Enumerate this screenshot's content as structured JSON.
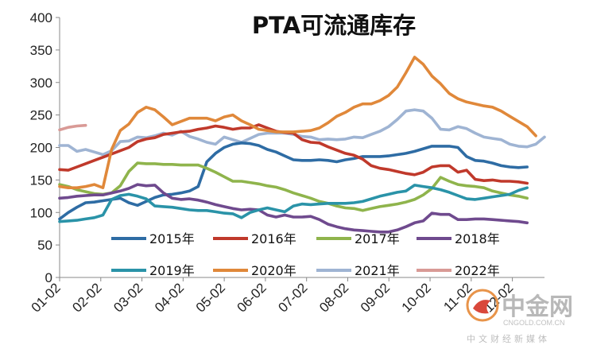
{
  "chart_data": {
    "type": "line",
    "title": "PTA可流通库存",
    "xlabel": "",
    "ylabel": "",
    "ylim": [
      0,
      400
    ],
    "yticks": [
      0,
      50,
      100,
      150,
      200,
      250,
      300,
      350,
      400
    ],
    "x_ticklabels": [
      "01-02",
      "02-02",
      "03-02",
      "04-02",
      "05-02",
      "06-02",
      "07-02",
      "08-02",
      "09-02",
      "10-02",
      "11-02",
      "12-02"
    ],
    "grid": false,
    "legend_position": "bottom",
    "series": [
      {
        "name": "2015年",
        "color": "#2e6ca4",
        "values": [
          90,
          100,
          108,
          115,
          116,
          118,
          120,
          122,
          115,
          111,
          117,
          123,
          127,
          128,
          130,
          133,
          140,
          178,
          191,
          200,
          205,
          207,
          206,
          203,
          197,
          193,
          187,
          181,
          180,
          180,
          181,
          180,
          178,
          181,
          183,
          186,
          186,
          186,
          187,
          189,
          191,
          194,
          198,
          202,
          202,
          202,
          200,
          186,
          180,
          179,
          176,
          172,
          170,
          169,
          170
        ]
      },
      {
        "name": "2016年",
        "color": "#c0392b",
        "values": [
          166,
          165,
          170,
          175,
          180,
          185,
          190,
          195,
          200,
          209,
          213,
          215,
          220,
          222,
          224,
          225,
          228,
          230,
          233,
          231,
          228,
          230,
          230,
          235,
          230,
          225,
          223,
          222,
          212,
          208,
          207,
          201,
          196,
          191,
          188,
          182,
          172,
          168,
          166,
          163,
          160,
          158,
          162,
          170,
          172,
          172,
          162,
          165,
          151,
          149,
          150,
          148,
          148,
          147,
          145
        ]
      },
      {
        "name": "2017年",
        "color": "#8fb44c",
        "values": [
          143,
          140,
          135,
          132,
          129,
          128,
          130,
          141,
          163,
          176,
          175,
          175,
          174,
          174,
          173,
          173,
          173,
          168,
          162,
          155,
          148,
          148,
          146,
          144,
          141,
          139,
          135,
          130,
          126,
          122,
          117,
          114,
          110,
          107,
          106,
          103,
          106,
          109,
          111,
          113,
          116,
          120,
          127,
          137,
          154,
          148,
          143,
          141,
          140,
          138,
          133,
          130,
          127,
          125,
          122
        ]
      },
      {
        "name": "2018年",
        "color": "#6f4a8e",
        "values": [
          122,
          123,
          125,
          126,
          127,
          127,
          130,
          133,
          137,
          143,
          141,
          142,
          130,
          122,
          120,
          121,
          119,
          116,
          112,
          109,
          106,
          104,
          105,
          104,
          96,
          93,
          96,
          93,
          93,
          94,
          89,
          82,
          78,
          75,
          73,
          72,
          71,
          70,
          70,
          73,
          78,
          84,
          87,
          99,
          97,
          97,
          89,
          89,
          90,
          90,
          89,
          88,
          87,
          86,
          84
        ]
      },
      {
        "name": "2019年",
        "color": "#2a93a8",
        "values": [
          86,
          87,
          88,
          90,
          92,
          96,
          120,
          126,
          128,
          125,
          121,
          110,
          109,
          108,
          106,
          104,
          103,
          103,
          101,
          99,
          98,
          92,
          100,
          104,
          107,
          104,
          101,
          110,
          113,
          112,
          113,
          114,
          114,
          114,
          115,
          117,
          121,
          125,
          128,
          131,
          133,
          142,
          140,
          138,
          135,
          131,
          126,
          121,
          120,
          122,
          124,
          126,
          128,
          134,
          138
        ]
      },
      {
        "name": "2020年",
        "color": "#e0883a",
        "values": [
          140,
          138,
          138,
          140,
          143,
          138,
          197,
          226,
          236,
          254,
          262,
          258,
          247,
          235,
          240,
          245,
          245,
          245,
          241,
          247,
          250,
          241,
          235,
          228,
          226,
          224,
          224,
          224,
          225,
          226,
          230,
          238,
          248,
          254,
          262,
          267,
          267,
          272,
          280,
          293,
          315,
          339,
          328,
          310,
          298,
          283,
          275,
          270,
          267,
          264,
          262,
          256,
          248,
          240,
          232,
          218
        ]
      },
      {
        "name": "2021年",
        "color": "#9fb4d3",
        "values": [
          203,
          203,
          194,
          197,
          193,
          189,
          195,
          209,
          210,
          216,
          215,
          218,
          222,
          219,
          225,
          217,
          213,
          208,
          205,
          216,
          212,
          208,
          214,
          220,
          222,
          222,
          222,
          220,
          217,
          216,
          212,
          213,
          212,
          213,
          216,
          215,
          220,
          225,
          232,
          243,
          256,
          258,
          256,
          245,
          228,
          227,
          232,
          229,
          222,
          216,
          214,
          212,
          205,
          202,
          201,
          205,
          216
        ]
      },
      {
        "name": "2022年",
        "color": "#d99a96",
        "values": [
          227,
          231,
          233,
          234
        ]
      }
    ]
  },
  "watermark": {
    "brand": "中金网",
    "domain": "CNGOLD.COM.CN",
    "tagline": "中文财经新媒体"
  }
}
